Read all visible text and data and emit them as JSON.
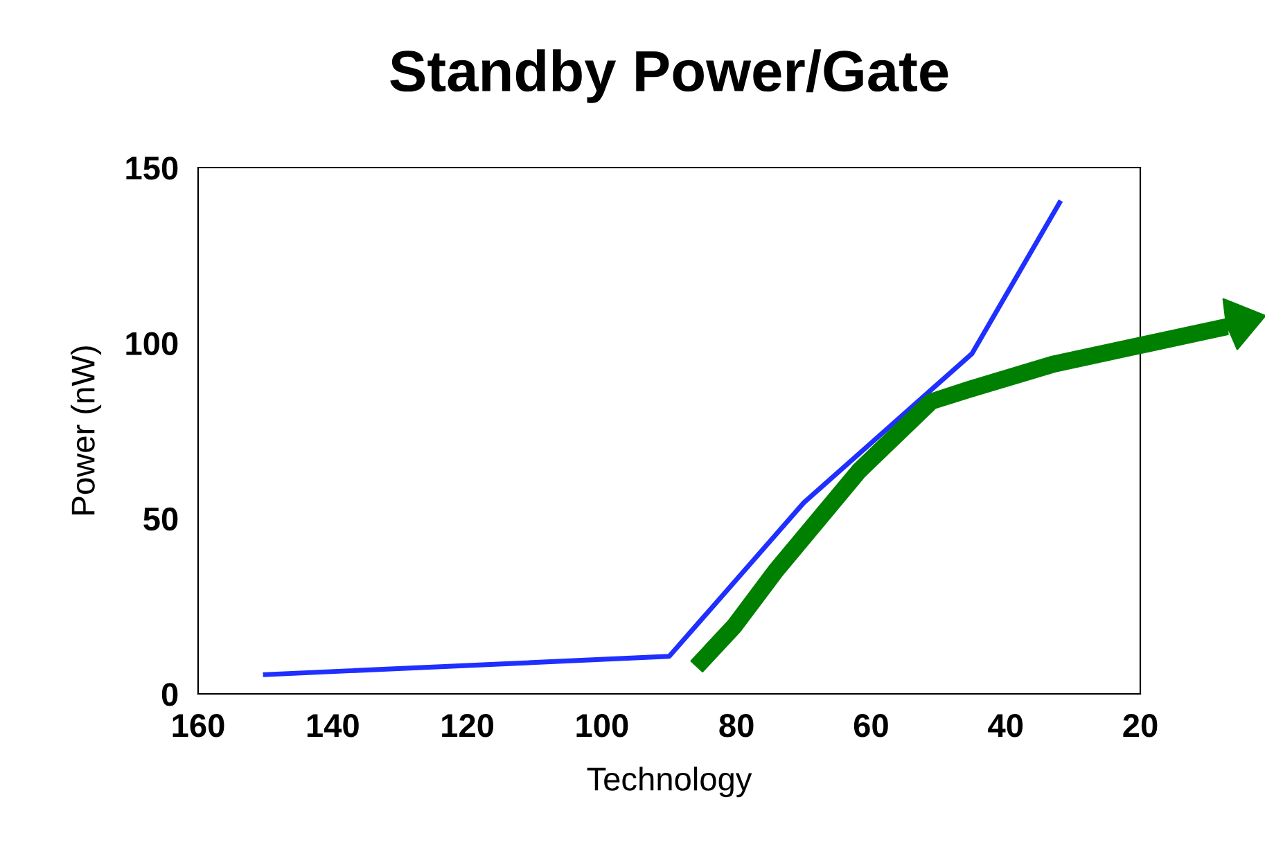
{
  "chart_data": {
    "type": "line",
    "title": "Standby Power/Gate",
    "xlabel": "Technology",
    "ylabel": "Power (nW)",
    "x": [
      150,
      90,
      70,
      45,
      32
    ],
    "series": [
      {
        "color": "#1f2fff",
        "values": [
          5.5,
          10.7,
          54.5,
          97,
          140
        ]
      }
    ],
    "xlim": [
      160,
      20
    ],
    "xticks": [
      160,
      140,
      120,
      100,
      80,
      60,
      40,
      20
    ],
    "ylim": [
      0,
      150
    ],
    "yticks": [
      0,
      50,
      100,
      150
    ],
    "grid": false,
    "legend": false
  }
}
